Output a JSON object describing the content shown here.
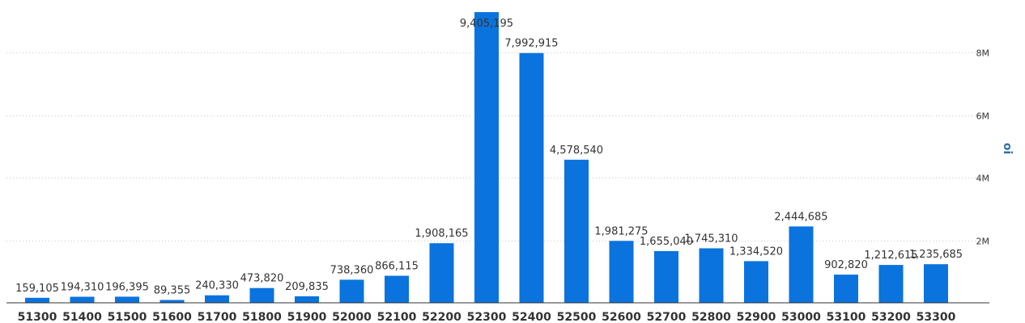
{
  "chart_data": {
    "type": "bar",
    "title": "",
    "xlabel": "",
    "ylabel": "oi",
    "categories": [
      "51300",
      "51400",
      "51500",
      "51600",
      "51700",
      "51800",
      "51900",
      "52000",
      "52100",
      "52200",
      "52300",
      "52400",
      "52500",
      "52600",
      "52700",
      "52800",
      "52900",
      "53000",
      "53100",
      "53200",
      "53300"
    ],
    "values": [
      159105,
      194310,
      196395,
      89355,
      240330,
      473820,
      209835,
      738360,
      866115,
      1908165,
      9405195,
      7992915,
      4578540,
      1981275,
      1655040,
      1745310,
      1334520,
      2444685,
      902820,
      1212615,
      1235685
    ],
    "data_labels": [
      "159,105",
      "194,310",
      "196,395",
      "89,355",
      "240,330",
      "473,820",
      "209,835",
      "738,360",
      "866,115",
      "1,908,165",
      "9,405,195",
      "7,992,915",
      "4,578,540",
      "1,981,275",
      "1,655,040",
      "1,745,310",
      "1,334,520",
      "2,444,685",
      "902,820",
      "1,212,615",
      "1,235,685"
    ],
    "y_ticks": [
      2000000,
      4000000,
      6000000,
      8000000
    ],
    "y_tick_labels": [
      "2M",
      "4M",
      "6M",
      "8M"
    ],
    "ylim": [
      0,
      9800000
    ],
    "grid": true,
    "bar_color": "#0a73de"
  }
}
